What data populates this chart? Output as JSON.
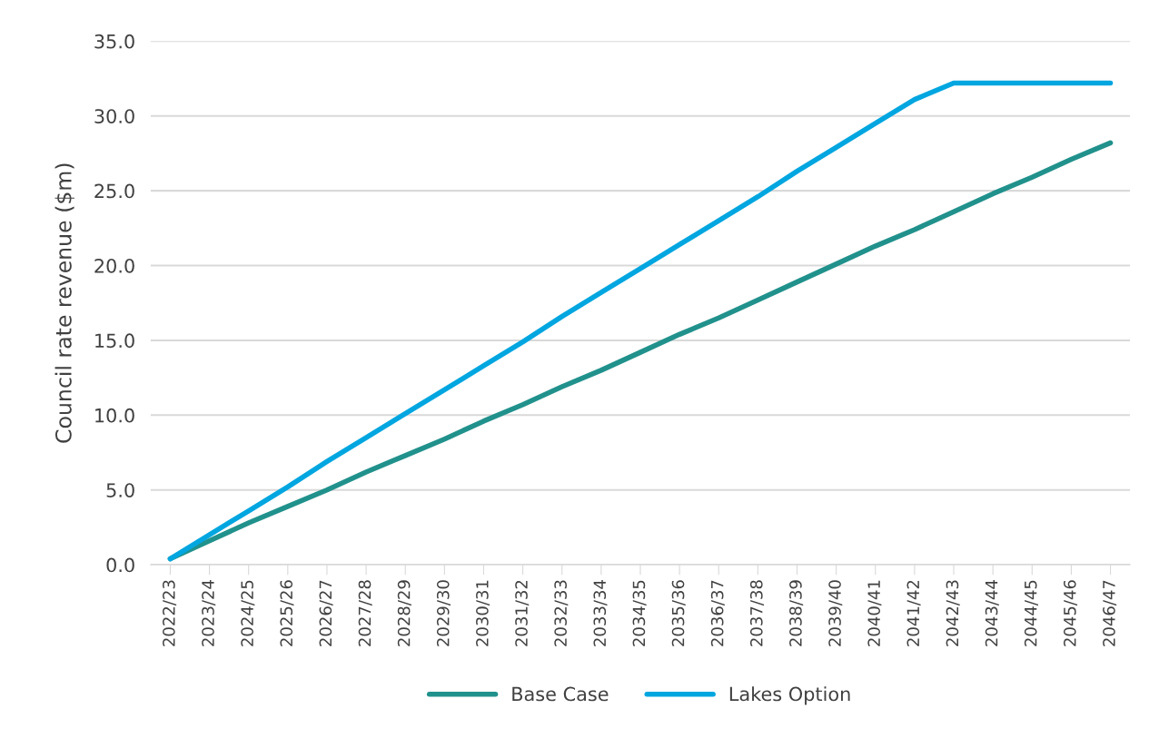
{
  "chart_data": {
    "type": "line",
    "ylabel": "Council rate revenue ($m)",
    "categories": [
      "2022/23",
      "2023/24",
      "2024/25",
      "2025/26",
      "2026/27",
      "2027/28",
      "2028/29",
      "2029/30",
      "2030/31",
      "2031/32",
      "2032/33",
      "2033/34",
      "2034/35",
      "2035/36",
      "2036/37",
      "2037/38",
      "2038/39",
      "2039/40",
      "2040/41",
      "2041/42",
      "2042/43",
      "2043/44",
      "2044/45",
      "2045/46",
      "2046/47"
    ],
    "series": [
      {
        "name": "Base Case",
        "color": "#21918c",
        "values": [
          0.4,
          1.6,
          2.8,
          3.9,
          5.0,
          6.2,
          7.3,
          8.4,
          9.6,
          10.7,
          11.9,
          13.0,
          14.2,
          15.4,
          16.5,
          17.7,
          18.9,
          20.1,
          21.3,
          22.4,
          23.6,
          24.8,
          25.9,
          27.1,
          28.2
        ]
      },
      {
        "name": "Lakes Option",
        "color": "#00a6e0",
        "values": [
          0.4,
          2.0,
          3.6,
          5.2,
          6.9,
          8.5,
          10.1,
          11.7,
          13.3,
          14.9,
          16.6,
          18.2,
          19.8,
          21.4,
          23.0,
          24.6,
          26.3,
          27.9,
          29.5,
          31.1,
          32.2,
          32.2,
          32.2,
          32.2,
          32.2
        ]
      }
    ],
    "ylim": [
      0,
      35
    ],
    "yticks": [
      {
        "value": 0,
        "label": "0.0"
      },
      {
        "value": 5,
        "label": "5.0"
      },
      {
        "value": 10,
        "label": "10.0"
      },
      {
        "value": 15,
        "label": "15.0"
      },
      {
        "value": 20,
        "label": "20.0"
      },
      {
        "value": 25,
        "label": "25.0"
      },
      {
        "value": 30,
        "label": "30.0"
      },
      {
        "value": 35,
        "label": "35.0"
      }
    ],
    "grid": "y",
    "legend": "bottom",
    "marker": "none",
    "line_style": "solid"
  }
}
